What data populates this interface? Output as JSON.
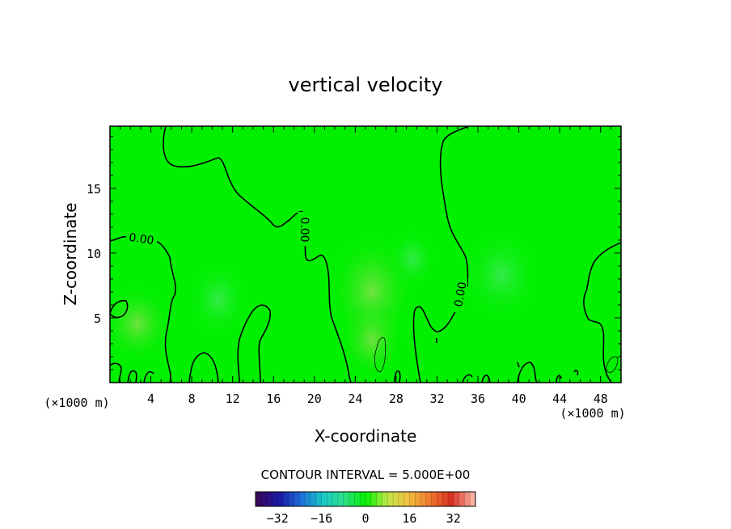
{
  "chart_data": {
    "type": "heatmap",
    "title": "vertical velocity",
    "xlabel": "X-coordinate",
    "ylabel": "Z-coordinate",
    "x_unit": "(×1000 m)",
    "y_unit": "(×1000 m)",
    "xlim": [
      0,
      50
    ],
    "ylim": [
      0,
      19.8
    ],
    "x_ticks": [
      4,
      8,
      12,
      16,
      20,
      24,
      28,
      32,
      36,
      40,
      44,
      48
    ],
    "y_ticks": [
      5,
      10,
      15
    ],
    "contour_labels": [
      "0.00",
      "0.00",
      "0.00"
    ],
    "contour_interval_text": "CONTOUR INTERVAL = 5.000E+00",
    "colorbar": {
      "ticks": [
        -32,
        -16,
        0,
        16,
        32
      ],
      "range": [
        -40,
        40
      ],
      "colormap": [
        "#3a0a5e",
        "#1a1aa8",
        "#1e6fd8",
        "#18c8c8",
        "#2ee08a",
        "#00f000",
        "#bfe84a",
        "#f2c040",
        "#f07a30",
        "#d83020",
        "#f8b0a0"
      ]
    },
    "field_color": "#00f000"
  }
}
